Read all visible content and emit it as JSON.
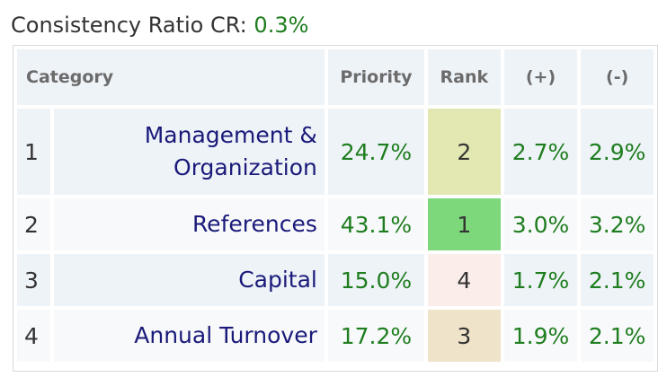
{
  "header": {
    "cr_label": "Consistency Ratio CR:",
    "cr_value": "0.3%"
  },
  "table": {
    "columns": {
      "category": "Category",
      "priority": "Priority",
      "rank": "Rank",
      "plus": "(+)",
      "minus": "(-)"
    },
    "rows": [
      {
        "num": "1",
        "name": "Management & Organization",
        "priority": "24.7%",
        "rank": "2",
        "plus": "2.7%",
        "minus": "2.9%",
        "rank_color": "#e3e8b2"
      },
      {
        "num": "2",
        "name": "References",
        "priority": "43.1%",
        "rank": "1",
        "plus": "3.0%",
        "minus": "3.2%",
        "rank_color": "#7cd87a"
      },
      {
        "num": "3",
        "name": "Capital",
        "priority": "15.0%",
        "rank": "4",
        "plus": "1.7%",
        "minus": "2.1%",
        "rank_color": "#fbeeea"
      },
      {
        "num": "4",
        "name": "Annual Turnover",
        "priority": "17.2%",
        "rank": "3",
        "plus": "1.9%",
        "minus": "2.1%",
        "rank_color": "#efe3c9"
      }
    ]
  }
}
